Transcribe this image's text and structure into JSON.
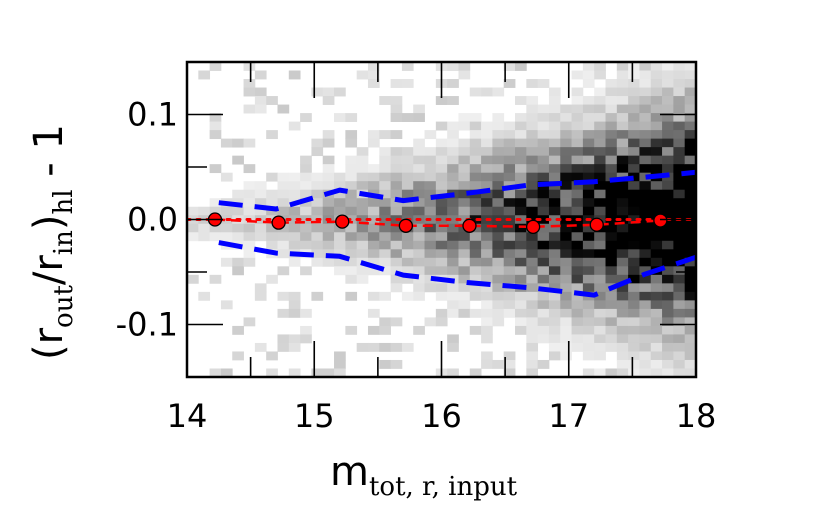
{
  "chart_data": {
    "type": "scatter",
    "title": "",
    "xlabel": {
      "main": "m",
      "sub": "tot, r, input"
    },
    "ylabel": {
      "open": "(r",
      "sub1": "out",
      "mid": "/r",
      "sub2": "in",
      "close": ")",
      "sub3": "hl",
      "tail": " - 1"
    },
    "xlim": [
      14,
      18
    ],
    "ylim": [
      -0.15,
      0.15
    ],
    "x_ticks": [
      14,
      15,
      16,
      17,
      18
    ],
    "x_tick_labels": [
      "14",
      "15",
      "16",
      "17",
      "18"
    ],
    "y_ticks": [
      0.1,
      0.0,
      -0.1
    ],
    "y_tick_labels": [
      "0.1",
      "0.0",
      "-0.1"
    ],
    "grid": false,
    "series": [
      {
        "type": "points-with-errorbars",
        "color": "#ff0000",
        "x": [
          14.22,
          14.72,
          15.22,
          15.72,
          16.22,
          16.72,
          17.22,
          17.72
        ],
        "y": [
          0.0,
          -0.003,
          -0.002,
          -0.006,
          -0.006,
          -0.007,
          -0.005,
          -0.001
        ],
        "yerr": [
          0.003,
          0.003,
          0.003,
          0.002,
          0.002,
          0.002,
          0.002,
          0.002
        ]
      },
      {
        "type": "reference-line",
        "style": "dotted",
        "color": "#ff0000",
        "y": 0.0
      },
      {
        "type": "dashed-line",
        "color": "#ff0000",
        "x": [
          14.22,
          14.72,
          15.22,
          15.72,
          16.22,
          16.72,
          17.22,
          17.72
        ],
        "y": [
          0.0,
          -0.003,
          -0.002,
          -0.006,
          -0.006,
          -0.007,
          -0.005,
          -0.001
        ]
      },
      {
        "type": "dashed-line",
        "color": "#0000ff",
        "x": [
          14.25,
          14.7,
          15.2,
          15.7,
          16.2,
          16.7,
          17.2,
          17.75,
          18.0
        ],
        "y": [
          0.016,
          0.01,
          0.028,
          0.018,
          0.025,
          0.033,
          0.036,
          0.042,
          0.045
        ]
      },
      {
        "type": "dashed-line",
        "color": "#0000ff",
        "x": [
          14.25,
          14.7,
          15.2,
          15.7,
          16.2,
          16.7,
          17.2,
          17.6,
          18.0
        ],
        "y": [
          -0.022,
          -0.032,
          -0.035,
          -0.053,
          -0.06,
          -0.065,
          -0.072,
          -0.052,
          -0.036
        ]
      }
    ],
    "background": {
      "type": "heatmap",
      "colormap": "grayscale",
      "description_of_density": "2D histogram of points, density increasing toward higher x and concentrated near y=0",
      "x_bins": 45,
      "y_bins": 37
    }
  }
}
